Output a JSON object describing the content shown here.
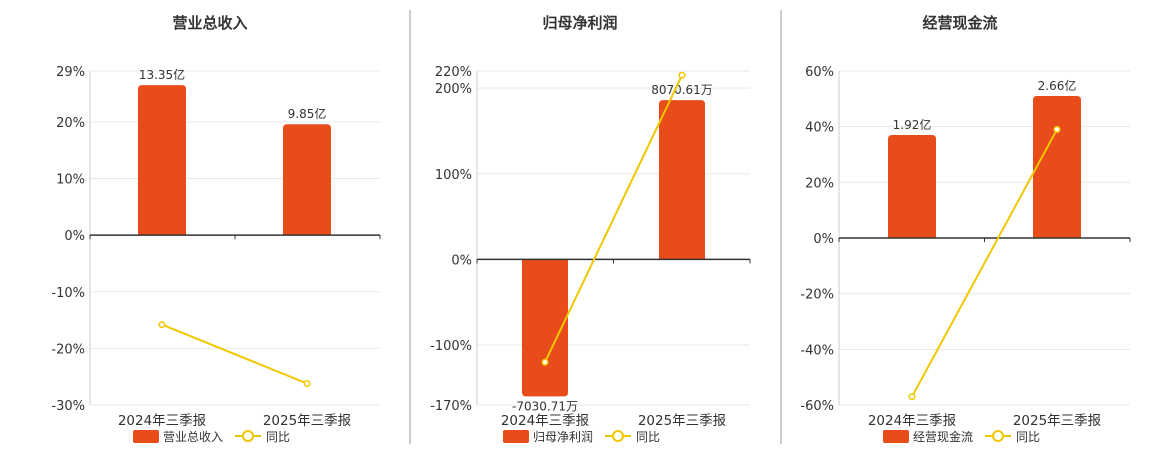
{
  "colors": {
    "bar": "#e84c1a",
    "line": "#f0c800",
    "axis": "#333333",
    "grid": "#e8e8e8",
    "divider": "#999999",
    "text": "#333333"
  },
  "chart_data": [
    {
      "type": "bar",
      "title": "营业总收入",
      "categories": [
        "2024年三季报",
        "2025年三季报"
      ],
      "bar_series_name": "营业总收入",
      "bar_labels": [
        "13.35亿",
        "9.85亿"
      ],
      "bar_values": [
        26.5,
        19.6
      ],
      "line_series_name": "同比",
      "line_values": [
        -15.8,
        -26.2
      ],
      "y_ticks": [
        29,
        20,
        10,
        0,
        -10,
        -20,
        -30
      ],
      "y_tick_labels": [
        "29%",
        "20%",
        "10%",
        "0%",
        "-10%",
        "-20%",
        "-30%"
      ],
      "ylim": [
        -30,
        29
      ]
    },
    {
      "type": "bar",
      "title": "归母净利润",
      "categories": [
        "2024年三季报",
        "2025年三季报"
      ],
      "bar_series_name": "归母净利润",
      "bar_labels": [
        "-7030.71万",
        "8070.61万"
      ],
      "bar_values": [
        -160,
        186
      ],
      "line_series_name": "同比",
      "line_values": [
        -120,
        215
      ],
      "y_ticks": [
        220,
        200,
        100,
        0,
        -100,
        -170
      ],
      "y_tick_labels": [
        "220%",
        "200%",
        "100%",
        "0%",
        "-100%",
        "-170%"
      ],
      "ylim": [
        -170,
        220
      ]
    },
    {
      "type": "bar",
      "title": "经营现金流",
      "categories": [
        "2024年三季报",
        "2025年三季报"
      ],
      "bar_series_name": "经营现金流",
      "bar_labels": [
        "1.92亿",
        "2.66亿"
      ],
      "bar_values": [
        37,
        51
      ],
      "line_series_name": "同比",
      "line_values": [
        -57,
        39
      ],
      "y_ticks": [
        60,
        40,
        20,
        0,
        -20,
        -40,
        -60
      ],
      "y_tick_labels": [
        "60%",
        "40%",
        "20%",
        "0%",
        "-20%",
        "-40%",
        "-60%"
      ],
      "ylim": [
        -60,
        60
      ]
    }
  ]
}
